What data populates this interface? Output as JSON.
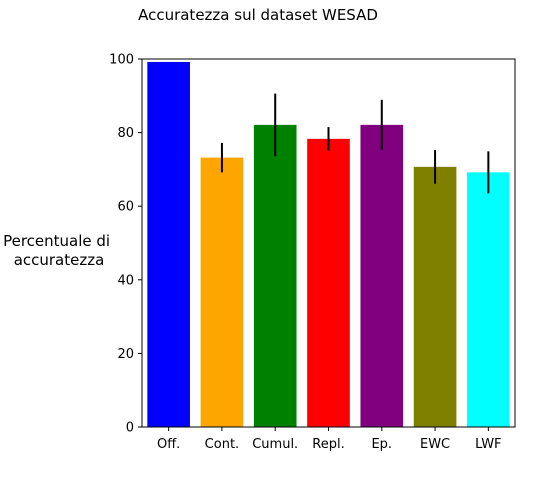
{
  "chart_data": {
    "type": "bar",
    "title": "Accuratezza sul dataset WESAD",
    "xlabel": "",
    "ylabel_lines": [
      "Percentuale di",
      "accuratezza"
    ],
    "categories": [
      "Off.",
      "Cont.",
      "Cumul.",
      "Repl.",
      "Ep.",
      "EWC",
      "LWF"
    ],
    "values": [
      99.2,
      73.2,
      82.1,
      78.3,
      82.1,
      70.7,
      69.2
    ],
    "errors": [
      0,
      4.0,
      8.5,
      3.2,
      6.8,
      4.6,
      5.7
    ],
    "colors": [
      "#0000ff",
      "#ffa500",
      "#008000",
      "#ff0000",
      "#800080",
      "#808000",
      "#00ffff"
    ],
    "ylim": [
      0,
      100
    ],
    "yticks": [
      0,
      20,
      40,
      60,
      80,
      100
    ],
    "grid": false
  }
}
